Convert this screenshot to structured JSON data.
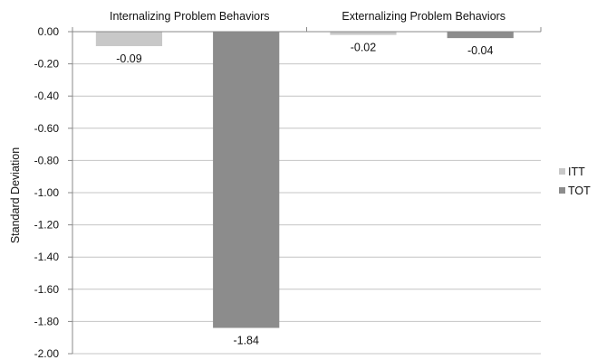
{
  "chart_data": {
    "type": "bar",
    "categories": [
      "Internalizing Problem Behaviors",
      "Externalizing Problem Behaviors"
    ],
    "series": [
      {
        "name": "ITT",
        "values": [
          -0.09,
          -0.02
        ],
        "color": "#c8c8c8"
      },
      {
        "name": "TOT",
        "values": [
          -1.84,
          -0.04
        ],
        "color": "#8c8c8c"
      }
    ],
    "data_labels": [
      [
        "-0.09",
        "-0.02"
      ],
      [
        "-1.84",
        "-0.04"
      ]
    ],
    "ylabel": "Standard Deviation",
    "ylim": [
      -2.0,
      0.0
    ],
    "yticks": [
      "0.00",
      "-0.20",
      "-0.40",
      "-0.60",
      "-0.80",
      "-1.00",
      "-1.20",
      "-1.40",
      "-1.60",
      "-1.80",
      "-2.00"
    ],
    "grid": true,
    "legend_position": "right",
    "category_label_position": "top"
  }
}
